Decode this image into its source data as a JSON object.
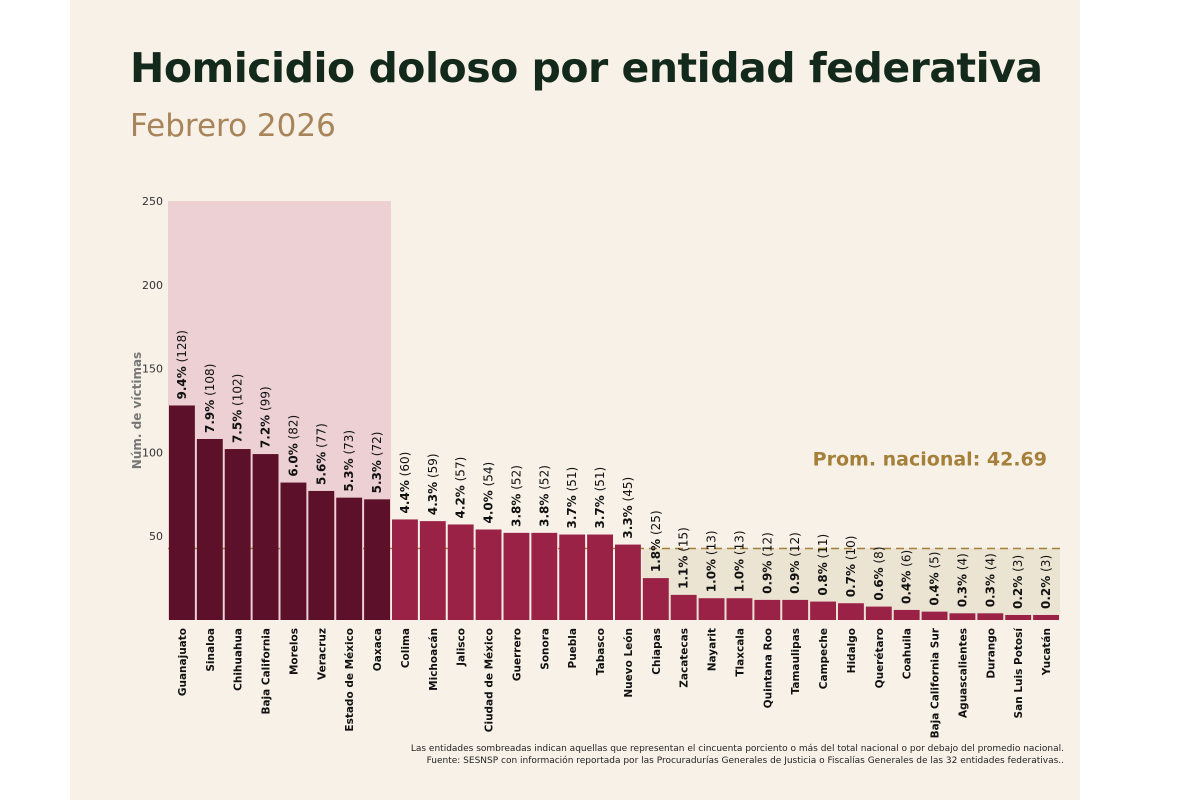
{
  "title": "Homicidio doloso por entidad federativa",
  "subtitle": "Febrero 2026",
  "colors": {
    "top_bar": "#5c1029",
    "other_bar": "#9b2247",
    "top_shade": "#ecd0d3",
    "below_avg_shade": "#ebe4d3",
    "avg_line": "#a5803a",
    "title": "#13291c",
    "subtitle": "#a8845a"
  },
  "chart_data": {
    "type": "bar",
    "ylabel": "Núm. de víctimas",
    "ylim": [
      0,
      250
    ],
    "yticks": [
      50,
      100,
      150,
      200,
      250
    ],
    "categories": [
      "Guanajuato",
      "Sinaloa",
      "Chihuahua",
      "Baja California",
      "Morelos",
      "Veracruz",
      "Estado de México",
      "Oaxaca",
      "Colima",
      "Michoacán",
      "Jalisco",
      "Ciudad de México",
      "Guerrero",
      "Sonora",
      "Puebla",
      "Tabasco",
      "Nuevo León",
      "Chiapas",
      "Zacatecas",
      "Nayarit",
      "Tlaxcala",
      "Quintana Roo",
      "Tamaulipas",
      "Campeche",
      "Hidalgo",
      "Querétaro",
      "Coahuila",
      "Baja California Sur",
      "Aguascalientes",
      "Durango",
      "San Luis Potosí",
      "Yucatán"
    ],
    "values": [
      128,
      108,
      102,
      99,
      82,
      77,
      73,
      72,
      60,
      59,
      57,
      54,
      52,
      52,
      51,
      51,
      45,
      25,
      15,
      13,
      13,
      12,
      12,
      11,
      10,
      8,
      6,
      5,
      4,
      4,
      3,
      3
    ],
    "percent_labels": [
      "9.4%",
      "7.9%",
      "7.5%",
      "7.2%",
      "6.0%",
      "5.6%",
      "5.3%",
      "5.3%",
      "4.4%",
      "4.3%",
      "4.2%",
      "4.0%",
      "3.8%",
      "3.8%",
      "3.7%",
      "3.7%",
      "3.3%",
      "1.8%",
      "1.1%",
      "1.0%",
      "1.0%",
      "0.9%",
      "0.9%",
      "0.8%",
      "0.7%",
      "0.6%",
      "0.4%",
      "0.4%",
      "0.3%",
      "0.3%",
      "0.2%",
      "0.2%"
    ],
    "top_count": 8,
    "average": 42.69,
    "average_label": "Prom. nacional: 42.69",
    "grid": false
  },
  "notes": [
    "Las entidades sombreadas indican aquellas que representan el cincuenta porciento o más del total nacional o por debajo del promedio nacional.",
    "Fuente: SESNSP con información reportada por las Procuradurías Generales de Justicia o Fiscalías Generales de las 32 entidades federativas.."
  ]
}
